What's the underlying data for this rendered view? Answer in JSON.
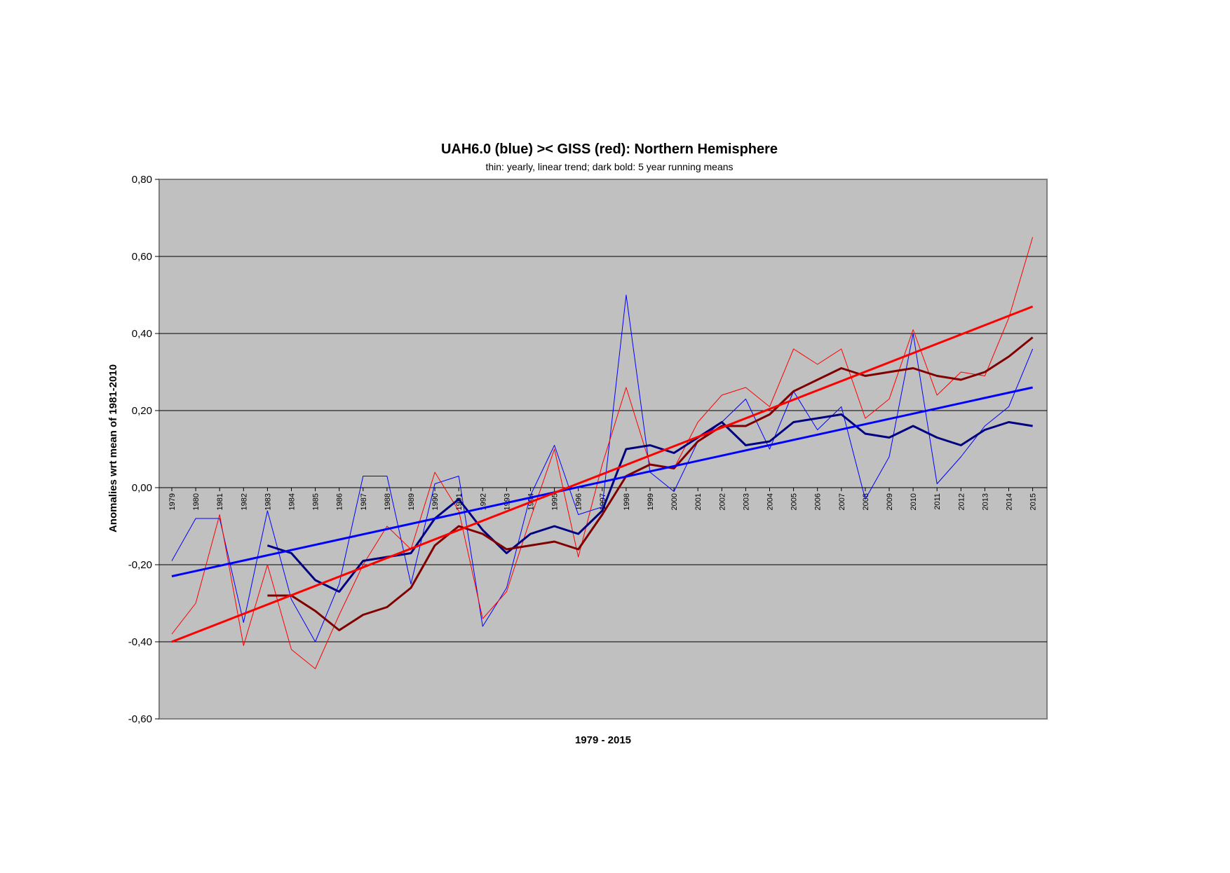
{
  "chart_data": {
    "type": "line",
    "title": "UAH6.0 (blue) >< GISS (red): Northern Hemisphere",
    "subtitle": "thin: yearly, linear trend; dark bold: 5 year running means",
    "xlabel": "1979 - 2015",
    "ylabel": "Anomalies wrt mean of 1981-2010",
    "ylim": [
      -0.6,
      0.8
    ],
    "yticks": [
      "0,80",
      "0,60",
      "0,40",
      "0,20",
      "0,00",
      "-0,20",
      "-0,40",
      "-0,60"
    ],
    "ytick_values": [
      0.8,
      0.6,
      0.4,
      0.2,
      0.0,
      -0.2,
      -0.4,
      -0.6
    ],
    "grid": true,
    "background": "#c0c0c0",
    "x": [
      1979,
      1980,
      1981,
      1982,
      1983,
      1984,
      1985,
      1986,
      1987,
      1988,
      1989,
      1990,
      1991,
      1992,
      1993,
      1994,
      1995,
      1996,
      1997,
      1998,
      1999,
      2000,
      2001,
      2002,
      2003,
      2004,
      2005,
      2006,
      2007,
      2008,
      2009,
      2010,
      2011,
      2012,
      2013,
      2014,
      2015
    ],
    "series": [
      {
        "key": "uah_yearly",
        "color": "#0000ff",
        "width": 1,
        "values": [
          -0.19,
          -0.08,
          -0.08,
          -0.35,
          -0.06,
          -0.29,
          -0.4,
          -0.25,
          0.03,
          0.03,
          -0.25,
          0.01,
          0.03,
          -0.36,
          -0.26,
          -0.02,
          0.11,
          -0.07,
          -0.05,
          0.5,
          0.04,
          -0.01,
          0.12,
          0.17,
          0.23,
          0.1,
          0.25,
          0.15,
          0.21,
          -0.03,
          0.08,
          0.4,
          0.01,
          0.08,
          0.16,
          0.21,
          0.36
        ]
      },
      {
        "key": "giss_yearly",
        "color": "#ff0000",
        "width": 1,
        "values": [
          -0.38,
          -0.3,
          -0.07,
          -0.41,
          -0.2,
          -0.42,
          -0.47,
          -0.33,
          -0.2,
          -0.1,
          -0.16,
          0.04,
          -0.06,
          -0.34,
          -0.27,
          -0.08,
          0.1,
          -0.18,
          0.06,
          0.26,
          0.06,
          0.05,
          0.17,
          0.24,
          0.26,
          0.21,
          0.36,
          0.32,
          0.36,
          0.18,
          0.23,
          0.41,
          0.24,
          0.3,
          0.29,
          0.44,
          0.65
        ]
      },
      {
        "key": "uah_5yr",
        "color": "#000080",
        "width": 3,
        "values": [
          null,
          null,
          null,
          null,
          -0.15,
          -0.17,
          -0.24,
          -0.27,
          -0.19,
          -0.18,
          -0.17,
          -0.08,
          -0.03,
          -0.11,
          -0.17,
          -0.12,
          -0.1,
          -0.12,
          -0.06,
          0.1,
          0.11,
          0.09,
          0.13,
          0.17,
          0.11,
          0.12,
          0.17,
          0.18,
          0.19,
          0.14,
          0.13,
          0.16,
          0.13,
          0.11,
          0.15,
          0.17,
          0.16
        ]
      },
      {
        "key": "giss_5yr",
        "color": "#800000",
        "width": 3,
        "values": [
          null,
          null,
          null,
          null,
          -0.28,
          -0.28,
          -0.32,
          -0.37,
          -0.33,
          -0.31,
          -0.26,
          -0.15,
          -0.1,
          -0.12,
          -0.16,
          -0.15,
          -0.14,
          -0.16,
          -0.07,
          0.03,
          0.06,
          0.05,
          0.12,
          0.16,
          0.16,
          0.19,
          0.25,
          0.28,
          0.31,
          0.29,
          0.3,
          0.31,
          0.29,
          0.28,
          0.3,
          0.34,
          0.39
        ]
      },
      {
        "key": "uah_trend",
        "color": "#0000ff",
        "width": 3,
        "start": -0.23,
        "end": 0.26
      },
      {
        "key": "giss_trend",
        "color": "#ff0000",
        "width": 3,
        "start": -0.4,
        "end": 0.47
      }
    ]
  }
}
